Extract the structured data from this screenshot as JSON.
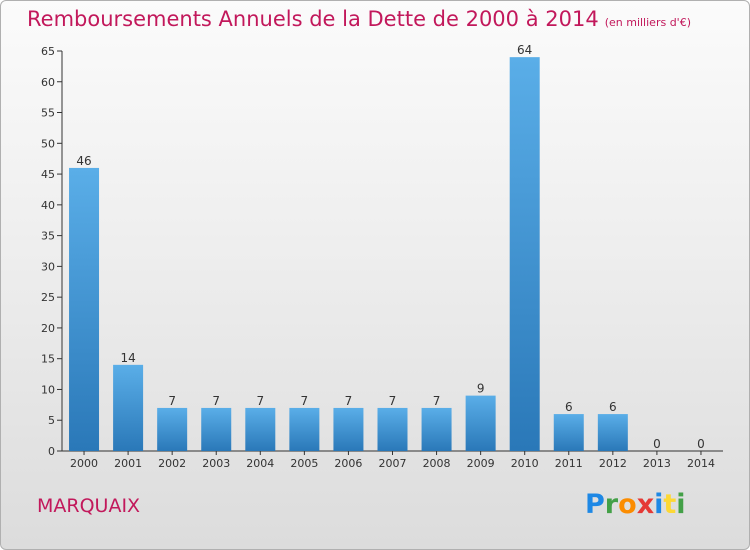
{
  "header": {
    "title": "Remboursements Annuels de la Dette de 2000 à 2014",
    "unit": "(en milliers d'€)"
  },
  "footer": {
    "commune": "MARQUAIX",
    "logo": "Proxiti"
  },
  "colors": {
    "bar_light": "#5aaee8",
    "bar_dark": "#2a78b8",
    "title": "#c2185b"
  },
  "chart_data": {
    "type": "bar",
    "title": "Remboursements Annuels de la Dette de 2000 à 2014",
    "subtitle": "(en milliers d'€)",
    "xlabel": "",
    "ylabel": "",
    "categories": [
      "2000",
      "2001",
      "2002",
      "2003",
      "2004",
      "2005",
      "2006",
      "2007",
      "2008",
      "2009",
      "2010",
      "2011",
      "2012",
      "2013",
      "2014"
    ],
    "values": [
      46,
      14,
      7,
      7,
      7,
      7,
      7,
      7,
      7,
      9,
      64,
      6,
      6,
      0,
      0
    ],
    "ylim": [
      0,
      65
    ],
    "yticks": [
      0,
      5,
      10,
      15,
      20,
      25,
      30,
      35,
      40,
      45,
      50,
      55,
      60,
      65
    ],
    "grid": false,
    "legend": "none"
  }
}
